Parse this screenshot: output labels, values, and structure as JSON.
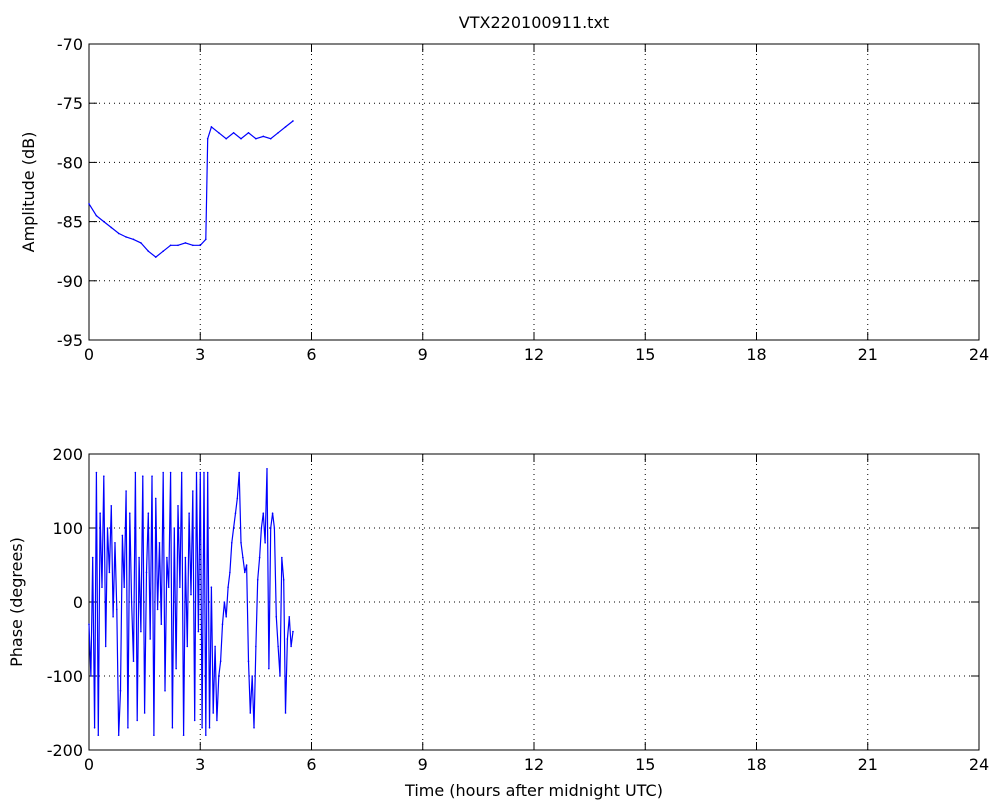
{
  "chart_data": [
    {
      "type": "line",
      "title": "VTX220100911.txt",
      "xlabel": "",
      "ylabel": "Amplitude (dB)",
      "xlim": [
        0,
        24
      ],
      "ylim": [
        -95,
        -70
      ],
      "xticks": [
        0,
        3,
        6,
        9,
        12,
        15,
        18,
        21,
        24
      ],
      "yticks": [
        -95,
        -90,
        -85,
        -80,
        -75,
        -70
      ],
      "grid": true,
      "color": "#0000ff",
      "series": [
        {
          "x": [
            0,
            0.2,
            0.4,
            0.6,
            0.8,
            1.0,
            1.2,
            1.4,
            1.6,
            1.8,
            2.0,
            2.2,
            2.4,
            2.6,
            2.8,
            3.0,
            3.15,
            3.2,
            3.3,
            3.5,
            3.7,
            3.9,
            4.1,
            4.3,
            4.5,
            4.7,
            4.9,
            5.1,
            5.3,
            5.5
          ],
          "y": [
            -83.5,
            -84.5,
            -85,
            -85.5,
            -86,
            -86.3,
            -86.5,
            -86.8,
            -87.5,
            -88,
            -87.5,
            -87,
            -87,
            -86.8,
            -87,
            -87,
            -86.5,
            -78,
            -77,
            -77.5,
            -78,
            -77.5,
            -78,
            -77.5,
            -78,
            -77.8,
            -78,
            -77.5,
            -77,
            -76.5
          ]
        }
      ]
    },
    {
      "type": "line",
      "title": "",
      "xlabel": "Time (hours after midnight UTC)",
      "ylabel": "Phase (degrees)",
      "xlim": [
        0,
        24
      ],
      "ylim": [
        -200,
        200
      ],
      "xticks": [
        0,
        3,
        6,
        9,
        12,
        15,
        18,
        21,
        24
      ],
      "yticks": [
        -200,
        -100,
        0,
        100,
        200
      ],
      "grid": true,
      "color": "#0000ff",
      "series": [
        {
          "x": [
            0,
            0.05,
            0.1,
            0.15,
            0.2,
            0.25,
            0.3,
            0.35,
            0.4,
            0.45,
            0.5,
            0.55,
            0.6,
            0.65,
            0.7,
            0.75,
            0.8,
            0.85,
            0.9,
            0.95,
            1.0,
            1.05,
            1.1,
            1.15,
            1.2,
            1.25,
            1.3,
            1.35,
            1.4,
            1.45,
            1.5,
            1.55,
            1.6,
            1.65,
            1.7,
            1.75,
            1.8,
            1.85,
            1.9,
            1.95,
            2.0,
            2.05,
            2.1,
            2.15,
            2.2,
            2.25,
            2.3,
            2.35,
            2.4,
            2.45,
            2.5,
            2.55,
            2.6,
            2.65,
            2.7,
            2.75,
            2.8,
            2.85,
            2.9,
            2.95,
            3.0,
            3.05,
            3.1,
            3.15,
            3.2,
            3.25,
            3.3,
            3.35,
            3.4,
            3.45,
            3.5,
            3.55,
            3.6,
            3.65,
            3.7,
            3.75,
            3.8,
            3.85,
            3.9,
            3.95,
            4.0,
            4.05,
            4.1,
            4.15,
            4.2,
            4.25,
            4.3,
            4.35,
            4.4,
            4.45,
            4.5,
            4.55,
            4.6,
            4.65,
            4.7,
            4.75,
            4.8,
            4.85,
            4.9,
            4.95,
            5.0,
            5.05,
            5.1,
            5.15,
            5.2,
            5.25,
            5.3,
            5.35,
            5.4,
            5.45,
            5.5
          ],
          "y": [
            -30,
            -100,
            60,
            -170,
            175,
            -180,
            120,
            20,
            170,
            -60,
            100,
            40,
            130,
            -20,
            80,
            -10,
            -180,
            -120,
            90,
            20,
            150,
            -170,
            120,
            0,
            -80,
            175,
            -160,
            60,
            -40,
            170,
            -150,
            40,
            120,
            -50,
            170,
            -180,
            140,
            -10,
            80,
            -30,
            175,
            -120,
            60,
            20,
            175,
            -170,
            100,
            -90,
            130,
            20,
            175,
            -180,
            60,
            -60,
            120,
            10,
            150,
            -160,
            175,
            -40,
            175,
            -170,
            175,
            -180,
            175,
            -170,
            20,
            -150,
            -60,
            -160,
            -100,
            -80,
            -30,
            0,
            -20,
            20,
            40,
            80,
            100,
            120,
            140,
            175,
            80,
            60,
            40,
            50,
            -80,
            -150,
            -100,
            -170,
            -60,
            30,
            60,
            100,
            120,
            80,
            180,
            -90,
            100,
            120,
            100,
            -20,
            -60,
            -100,
            60,
            30,
            -150,
            -50,
            -20,
            -60,
            -40
          ]
        }
      ]
    }
  ]
}
